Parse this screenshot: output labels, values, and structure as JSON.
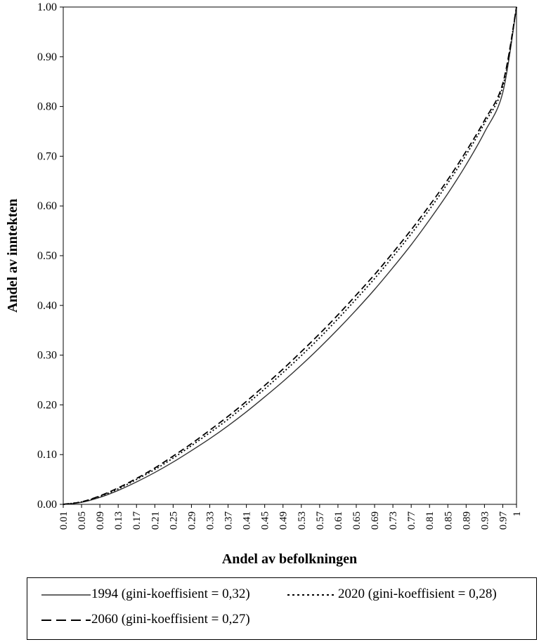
{
  "chart_data": {
    "type": "line",
    "title": "",
    "xlabel": "Andel av befolkningen",
    "ylabel": "Andel av inntekten",
    "xlim": [
      0.01,
      1
    ],
    "ylim": [
      0,
      1
    ],
    "y_ticks": [
      "0.00",
      "0.10",
      "0.20",
      "0.30",
      "0.40",
      "0.50",
      "0.60",
      "0.70",
      "0.80",
      "0.90",
      "1.00"
    ],
    "x_ticks": [
      "0.01",
      "0.05",
      "0.09",
      "0.13",
      "0.17",
      "0.21",
      "0.25",
      "0.29",
      "0.33",
      "0.37",
      "0.41",
      "0.45",
      "0.49",
      "0.53",
      "0.57",
      "0.61",
      "0.65",
      "0.69",
      "0.73",
      "0.77",
      "0.81",
      "0.85",
      "0.89",
      "0.93",
      "0.97",
      "1"
    ],
    "x": [
      0.01,
      0.05,
      0.09,
      0.13,
      0.17,
      0.21,
      0.25,
      0.29,
      0.33,
      0.37,
      0.41,
      0.45,
      0.49,
      0.53,
      0.57,
      0.61,
      0.65,
      0.69,
      0.73,
      0.77,
      0.81,
      0.85,
      0.89,
      0.93,
      0.97,
      1.0
    ],
    "series": [
      {
        "name": "1994 (gini-koeffisient = 0,32)",
        "style": "solid",
        "values": [
          0.0,
          0.004,
          0.014,
          0.028,
          0.045,
          0.064,
          0.085,
          0.108,
          0.132,
          0.158,
          0.186,
          0.216,
          0.247,
          0.28,
          0.315,
          0.352,
          0.391,
          0.432,
          0.476,
          0.522,
          0.572,
          0.625,
          0.683,
          0.748,
          0.828,
          1.0
        ]
      },
      {
        "name": "2020 (gini-koeffisient = 0,28)",
        "style": "dotted",
        "values": [
          0.0,
          0.005,
          0.016,
          0.031,
          0.05,
          0.07,
          0.093,
          0.118,
          0.144,
          0.171,
          0.201,
          0.232,
          0.265,
          0.299,
          0.335,
          0.373,
          0.413,
          0.454,
          0.498,
          0.544,
          0.593,
          0.646,
          0.703,
          0.766,
          0.84,
          1.0
        ]
      },
      {
        "name": "2060 (gini-koeffisient = 0,27)",
        "style": "dashed",
        "values": [
          0.0,
          0.005,
          0.017,
          0.033,
          0.052,
          0.073,
          0.097,
          0.122,
          0.149,
          0.177,
          0.207,
          0.239,
          0.272,
          0.307,
          0.343,
          0.381,
          0.421,
          0.462,
          0.506,
          0.552,
          0.601,
          0.653,
          0.71,
          0.772,
          0.846,
          1.0
        ]
      }
    ],
    "grid": false,
    "legend_position": "bottom"
  },
  "legend": {
    "line_color": "#333333",
    "dash_color": "#000000"
  }
}
